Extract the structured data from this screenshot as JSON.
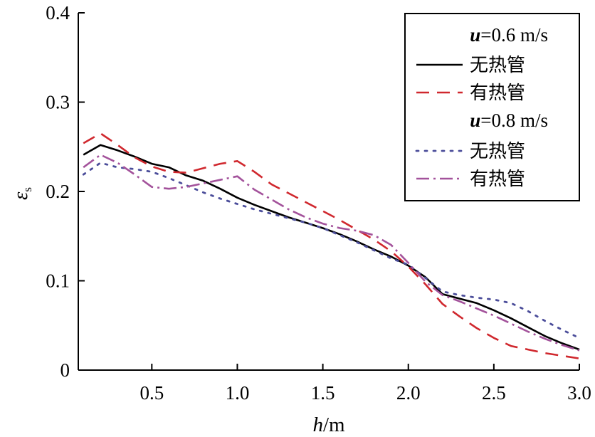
{
  "chart_data": {
    "type": "line",
    "xlabel": {
      "var": "h",
      "unit": "/m"
    },
    "ylabel": {
      "var": "ε",
      "sub": "s"
    },
    "xlim": [
      0.07,
      3.0
    ],
    "ylim": [
      0,
      0.4
    ],
    "x_ticks": [
      0.5,
      1.0,
      1.5,
      2.0,
      2.5,
      3.0
    ],
    "x_tick_labels": [
      "0.5",
      "1.0",
      "1.5",
      "2.0",
      "2.5",
      "3.0"
    ],
    "y_ticks": [
      0,
      0.1,
      0.2,
      0.3,
      0.4
    ],
    "y_tick_labels": [
      "0",
      "0.1",
      "0.2",
      "0.3",
      "0.4"
    ],
    "legend_position": "top-right",
    "legend_groups": [
      {
        "var": "u",
        "label": "=0.6 m/s"
      },
      {
        "var": "u",
        "label": "=0.8 m/s"
      }
    ],
    "series": [
      {
        "name": "无热管",
        "group": 0,
        "color": "#000000",
        "style": "solid",
        "x": [
          0.1,
          0.2,
          0.3,
          0.4,
          0.5,
          0.6,
          0.7,
          0.8,
          0.9,
          1.0,
          1.1,
          1.2,
          1.3,
          1.4,
          1.5,
          1.6,
          1.7,
          1.8,
          1.9,
          2.0,
          2.1,
          2.2,
          2.3,
          2.4,
          2.5,
          2.6,
          2.7,
          2.8,
          2.9,
          3.0
        ],
        "y": [
          0.241,
          0.252,
          0.246,
          0.239,
          0.231,
          0.227,
          0.218,
          0.212,
          0.203,
          0.193,
          0.185,
          0.178,
          0.171,
          0.165,
          0.159,
          0.152,
          0.144,
          0.135,
          0.127,
          0.117,
          0.104,
          0.085,
          0.08,
          0.075,
          0.067,
          0.058,
          0.048,
          0.038,
          0.03,
          0.023
        ]
      },
      {
        "name": "有热管",
        "group": 0,
        "color": "#d0282e",
        "style": "dashed",
        "x": [
          0.1,
          0.2,
          0.3,
          0.4,
          0.5,
          0.6,
          0.7,
          0.8,
          0.9,
          1.0,
          1.1,
          1.2,
          1.3,
          1.4,
          1.5,
          1.6,
          1.7,
          1.8,
          1.9,
          2.0,
          2.1,
          2.2,
          2.3,
          2.4,
          2.5,
          2.6,
          2.7,
          2.8,
          2.9,
          3.0
        ],
        "y": [
          0.254,
          0.265,
          0.252,
          0.238,
          0.228,
          0.222,
          0.221,
          0.226,
          0.231,
          0.234,
          0.222,
          0.208,
          0.198,
          0.188,
          0.178,
          0.168,
          0.157,
          0.146,
          0.133,
          0.116,
          0.096,
          0.074,
          0.06,
          0.047,
          0.036,
          0.027,
          0.023,
          0.019,
          0.016,
          0.013
        ]
      },
      {
        "name": "无热管",
        "group": 1,
        "color": "#4b4d9a",
        "style": "dotted",
        "x": [
          0.1,
          0.2,
          0.3,
          0.4,
          0.5,
          0.6,
          0.7,
          0.8,
          0.9,
          1.0,
          1.1,
          1.2,
          1.3,
          1.4,
          1.5,
          1.6,
          1.7,
          1.8,
          1.9,
          2.0,
          2.1,
          2.2,
          2.3,
          2.4,
          2.5,
          2.6,
          2.7,
          2.8,
          2.9,
          3.0
        ],
        "y": [
          0.219,
          0.232,
          0.227,
          0.225,
          0.222,
          0.215,
          0.207,
          0.199,
          0.192,
          0.186,
          0.18,
          0.175,
          0.17,
          0.165,
          0.159,
          0.151,
          0.143,
          0.134,
          0.125,
          0.118,
          0.103,
          0.088,
          0.084,
          0.081,
          0.079,
          0.075,
          0.066,
          0.055,
          0.045,
          0.036
        ]
      },
      {
        "name": "有热管",
        "group": 1,
        "color": "#a3529b",
        "style": "dashdot",
        "x": [
          0.1,
          0.2,
          0.3,
          0.4,
          0.5,
          0.6,
          0.7,
          0.8,
          0.9,
          1.0,
          1.1,
          1.2,
          1.3,
          1.4,
          1.5,
          1.6,
          1.7,
          1.8,
          1.9,
          2.0,
          2.1,
          2.2,
          2.3,
          2.4,
          2.5,
          2.6,
          2.7,
          2.8,
          2.9,
          3.0
        ],
        "y": [
          0.227,
          0.241,
          0.232,
          0.219,
          0.205,
          0.203,
          0.205,
          0.209,
          0.213,
          0.217,
          0.202,
          0.191,
          0.18,
          0.171,
          0.164,
          0.159,
          0.156,
          0.151,
          0.14,
          0.12,
          0.099,
          0.084,
          0.077,
          0.069,
          0.061,
          0.052,
          0.043,
          0.035,
          0.028,
          0.022
        ]
      }
    ]
  }
}
